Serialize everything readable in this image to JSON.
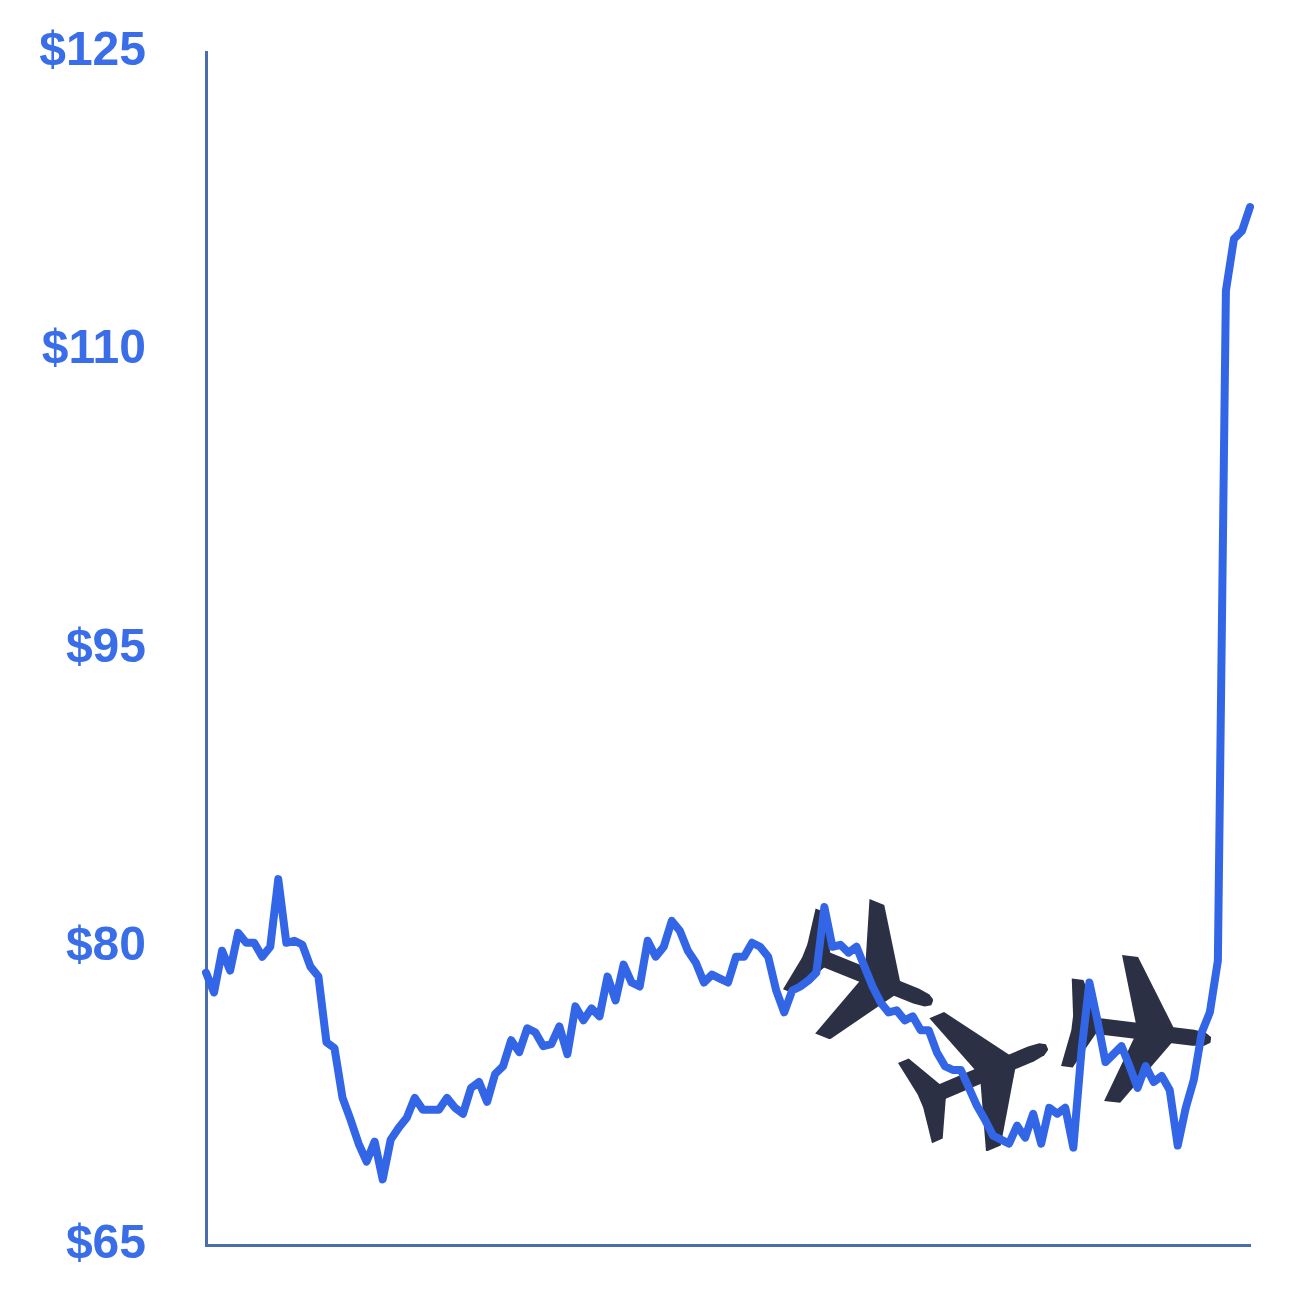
{
  "chart_data": {
    "type": "line",
    "categories": [
      null,
      null,
      null,
      null,
      null,
      null,
      null,
      null,
      null,
      null,
      null,
      null,
      null,
      null,
      null,
      null,
      null,
      null,
      null,
      null,
      null,
      null,
      null,
      null,
      null,
      null,
      null,
      null,
      null,
      null,
      null,
      null,
      null,
      null,
      null,
      null,
      null,
      null,
      null,
      null,
      null,
      null,
      null,
      null,
      null,
      null,
      null,
      null,
      null,
      null,
      null,
      null,
      null,
      null,
      null,
      null,
      null,
      null,
      null,
      null,
      null,
      null,
      null,
      null,
      null,
      null,
      null,
      null,
      null,
      null,
      null,
      null,
      null,
      null,
      null,
      null,
      null,
      null,
      null,
      null,
      null,
      null,
      null,
      null,
      null,
      null,
      null,
      null,
      null,
      null,
      null,
      null,
      null,
      null,
      null,
      null,
      null,
      null,
      null,
      null,
      null,
      null,
      null,
      null,
      null,
      null,
      null,
      null,
      null,
      null,
      null,
      null,
      null,
      null,
      null,
      null,
      null,
      null,
      null,
      null,
      null,
      null,
      null,
      null,
      null,
      null,
      null,
      null,
      null,
      null,
      null
    ],
    "values": [
      78.7,
      77.7,
      79.8,
      78.8,
      80.7,
      80.2,
      80.2,
      79.5,
      80.0,
      83.4,
      80.2,
      80.3,
      80.1,
      79.0,
      78.5,
      75.2,
      74.9,
      72.4,
      71.3,
      70.1,
      69.2,
      70.2,
      68.3,
      70.3,
      70.9,
      71.4,
      72.4,
      71.8,
      71.8,
      71.8,
      72.4,
      71.9,
      71.6,
      72.9,
      73.2,
      72.2,
      73.6,
      74.0,
      75.3,
      74.7,
      75.9,
      75.7,
      75.0,
      75.1,
      76.0,
      74.6,
      77.0,
      76.3,
      76.9,
      76.5,
      78.5,
      77.3,
      79.1,
      78.2,
      78.0,
      80.3,
      79.5,
      80.0,
      81.3,
      80.8,
      79.8,
      79.2,
      78.2,
      78.6,
      78.4,
      78.2,
      79.5,
      79.5,
      80.2,
      80.0,
      79.5,
      77.8,
      76.7,
      77.8,
      78.0,
      78.3,
      78.7,
      82.0,
      80.0,
      80.1,
      79.7,
      80.0,
      79.0,
      78.0,
      77.2,
      76.7,
      76.8,
      76.3,
      76.5,
      75.8,
      75.8,
      74.7,
      74.0,
      73.8,
      73.8,
      72.9,
      72.0,
      71.3,
      70.5,
      70.3,
      70.1,
      71.0,
      70.4,
      71.6,
      70.1,
      71.9,
      71.6,
      71.9,
      69.9,
      74.7,
      78.2,
      76.3,
      74.2,
      74.6,
      75.0,
      74.0,
      72.9,
      74.0,
      73.2,
      73.5,
      72.8,
      70.0,
      71.9,
      73.3,
      75.7,
      76.7,
      79.3,
      113.0,
      115.6,
      116.0,
      117.2
    ],
    "color": "#3366e6",
    "ylim": [
      65,
      125
    ],
    "yticks": [
      {
        "value": 65,
        "label": "$65"
      },
      {
        "value": 80,
        "label": "$80"
      },
      {
        "value": 95,
        "label": "$95"
      },
      {
        "value": 110,
        "label": "$110"
      },
      {
        "value": 125,
        "label": "$125"
      }
    ],
    "tick_labels": "y",
    "marker": "none"
  }
}
